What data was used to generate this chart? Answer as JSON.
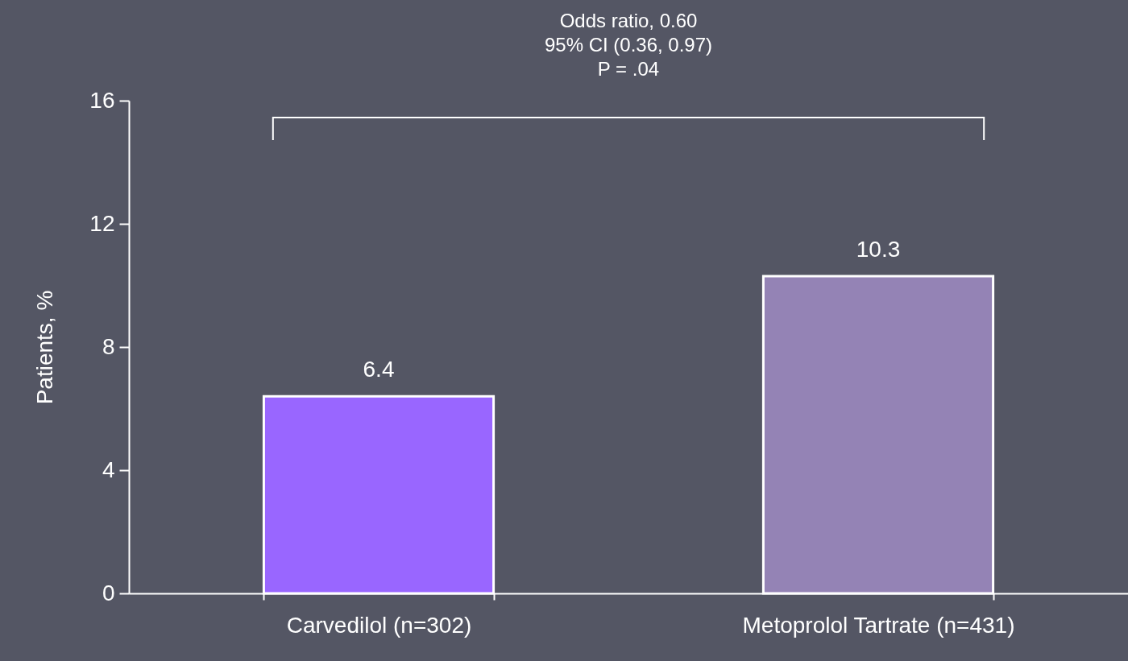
{
  "chart_data": {
    "type": "bar",
    "categories": [
      "Carvedilol (n=302)",
      "Metoprolol Tartrate (n=431)"
    ],
    "values": [
      6.4,
      10.3
    ],
    "colors": [
      "#9966ff",
      "#9483b5"
    ],
    "ylabel": "Patients, %",
    "ylim": [
      0,
      16
    ],
    "yticks": [
      0,
      4,
      8,
      12,
      16
    ],
    "grid": false,
    "data_labels": true,
    "annotations": [
      "Odds ratio, 0.60",
      "95% CI (0.36, 0.97)",
      "P = .04"
    ]
  }
}
